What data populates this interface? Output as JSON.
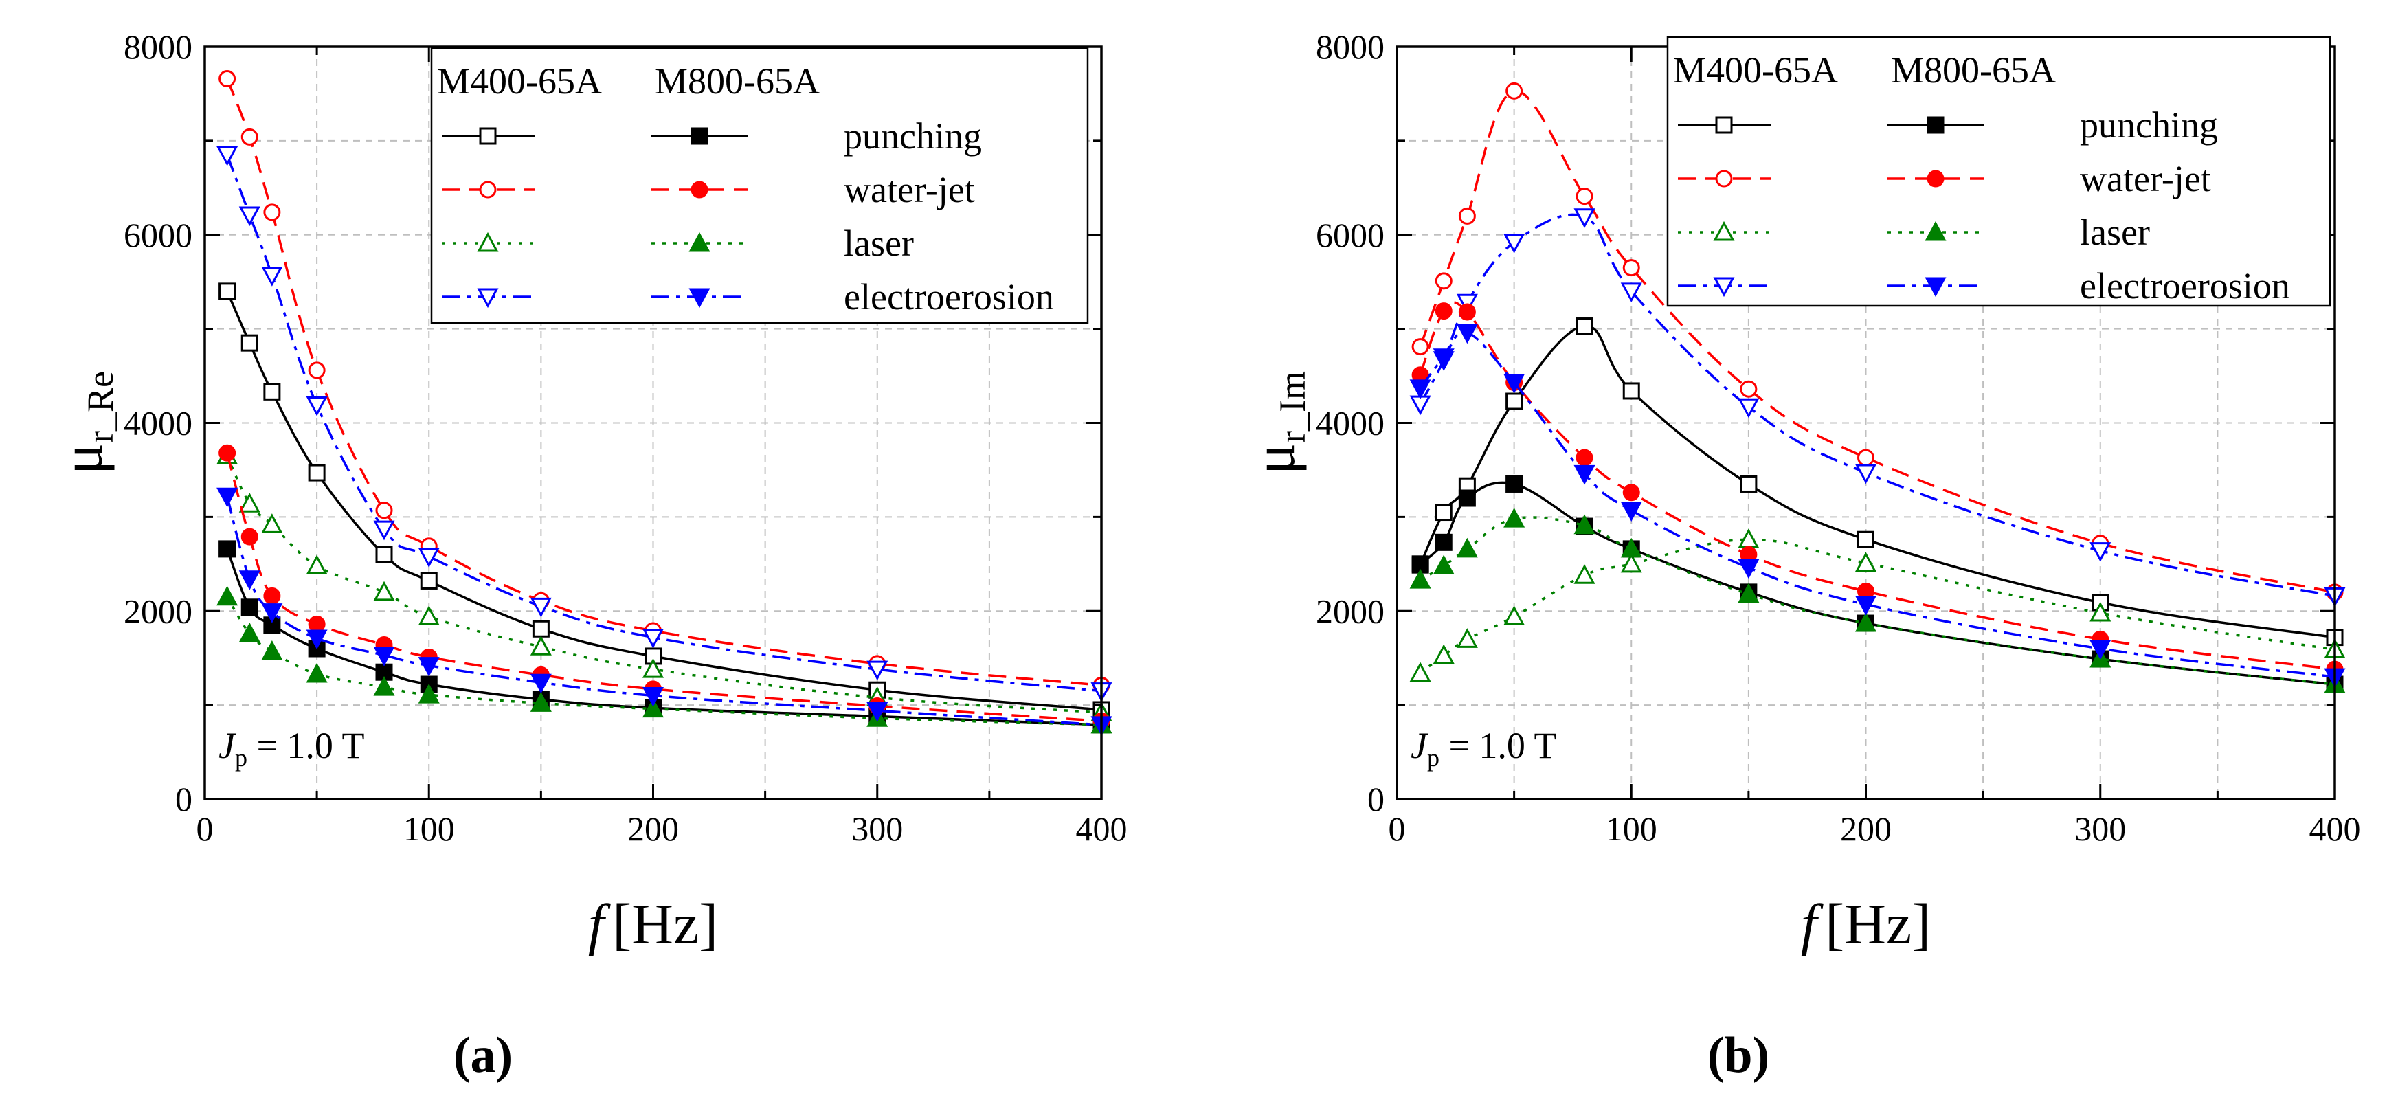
{
  "figure": {
    "panel_labels": [
      "(a)",
      "(b)"
    ]
  },
  "legend": {
    "header_m400": "M400-65A",
    "header_m800": "M800-65A",
    "entries": [
      "punching",
      "water-jet",
      "laser",
      "electroerosion"
    ]
  },
  "styles": {
    "punching": {
      "color": "#000000",
      "dash": "solid",
      "marker": "square"
    },
    "water-jet": {
      "color": "#ff0000",
      "dash": "dashed",
      "marker": "circle"
    },
    "laser": {
      "color": "#008000",
      "dash": "dotted",
      "marker": "triangle-up"
    },
    "electroerosion": {
      "color": "#0000ff",
      "dash": "dashdot",
      "marker": "triangle-down"
    }
  },
  "chart_data": [
    {
      "type": "line",
      "title": "(a)",
      "ylabel": "μr_Re",
      "ylabel_main": "μ",
      "ylabel_sub": "r_Re",
      "xlabel": "f [Hz]",
      "xlabel_var": "f",
      "xlabel_unit": "[Hz]",
      "annotation": {
        "var": "J",
        "sub": "p",
        "text": " = 1.0 T"
      },
      "xlim": [
        0,
        400
      ],
      "ylim": [
        0,
        8000
      ],
      "xticks": [
        0,
        100,
        200,
        300,
        400
      ],
      "yticks": [
        0,
        2000,
        4000,
        6000,
        8000
      ],
      "grid": true,
      "legend_position": "top-right",
      "x": [
        10,
        20,
        30,
        50,
        80,
        100,
        150,
        200,
        300,
        400
      ],
      "series": [
        {
          "name": "M400-65A punching",
          "material": "M400-65A",
          "process": "punching",
          "filled": false,
          "values": [
            5400,
            4850,
            4330,
            3470,
            2600,
            2320,
            1810,
            1520,
            1160,
            950
          ]
        },
        {
          "name": "M400-65A water-jet",
          "material": "M400-65A",
          "process": "water-jet",
          "filled": false,
          "values": [
            7660,
            7040,
            6240,
            4560,
            3070,
            2690,
            2110,
            1790,
            1440,
            1210
          ]
        },
        {
          "name": "M400-65A laser",
          "material": "M400-65A",
          "process": "laser",
          "filled": false,
          "values": [
            3650,
            3140,
            2920,
            2480,
            2200,
            1940,
            1620,
            1380,
            1080,
            920
          ]
        },
        {
          "name": "M400-65A electroerosion",
          "material": "M400-65A",
          "process": "electroerosion",
          "filled": false,
          "values": [
            6850,
            6210,
            5570,
            4190,
            2870,
            2580,
            2050,
            1720,
            1380,
            1150
          ]
        },
        {
          "name": "M800-65A punching",
          "material": "M800-65A",
          "process": "punching",
          "filled": true,
          "values": [
            2660,
            2040,
            1850,
            1600,
            1350,
            1220,
            1060,
            970,
            880,
            790
          ]
        },
        {
          "name": "M800-65A water-jet",
          "material": "M800-65A",
          "process": "water-jet",
          "filled": true,
          "values": [
            3680,
            2790,
            2160,
            1860,
            1640,
            1510,
            1320,
            1170,
            990,
            830
          ]
        },
        {
          "name": "M800-65A laser",
          "material": "M800-65A",
          "process": "laser",
          "filled": true,
          "values": [
            2150,
            1760,
            1570,
            1330,
            1190,
            1110,
            1020,
            960,
            860,
            790
          ]
        },
        {
          "name": "M800-65A electroerosion",
          "material": "M800-65A",
          "process": "electroerosion",
          "filled": true,
          "values": [
            3220,
            2340,
            1990,
            1710,
            1530,
            1420,
            1240,
            1100,
            940,
            790
          ]
        }
      ]
    },
    {
      "type": "line",
      "title": "(b)",
      "ylabel": "μr_Im",
      "ylabel_main": "μ",
      "ylabel_sub": "r_Im",
      "xlabel": "f [Hz]",
      "xlabel_var": "f",
      "xlabel_unit": "[Hz]",
      "annotation": {
        "var": "J",
        "sub": "p",
        "text": " = 1.0 T"
      },
      "xlim": [
        0,
        400
      ],
      "ylim": [
        0,
        8000
      ],
      "xticks": [
        0,
        100,
        200,
        300,
        400
      ],
      "yticks": [
        0,
        2000,
        4000,
        6000,
        8000
      ],
      "grid": true,
      "legend_position": "top-right",
      "x": [
        10,
        20,
        30,
        50,
        80,
        100,
        150,
        200,
        300,
        400
      ],
      "series": [
        {
          "name": "M400-65A punching",
          "material": "M400-65A",
          "process": "punching",
          "filled": false,
          "values": [
            2490,
            3050,
            3330,
            4230,
            5030,
            4340,
            3350,
            2760,
            2090,
            1720
          ]
        },
        {
          "name": "M400-65A water-jet",
          "material": "M400-65A",
          "process": "water-jet",
          "filled": false,
          "values": [
            4810,
            5510,
            6200,
            7530,
            6410,
            5650,
            4360,
            3630,
            2720,
            2200
          ]
        },
        {
          "name": "M400-65A laser",
          "material": "M400-65A",
          "process": "laser",
          "filled": false,
          "values": [
            1340,
            1530,
            1700,
            1940,
            2380,
            2500,
            2760,
            2510,
            1980,
            1590
          ]
        },
        {
          "name": "M400-65A electroerosion",
          "material": "M400-65A",
          "process": "electroerosion",
          "filled": false,
          "values": [
            4200,
            4670,
            5280,
            5920,
            6190,
            5400,
            4170,
            3470,
            2640,
            2160
          ]
        },
        {
          "name": "M800-65A punching",
          "material": "M800-65A",
          "process": "punching",
          "filled": true,
          "values": [
            2500,
            2730,
            3200,
            3350,
            2900,
            2660,
            2200,
            1870,
            1490,
            1220
          ]
        },
        {
          "name": "M800-65A water-jet",
          "material": "M800-65A",
          "process": "water-jet",
          "filled": true,
          "values": [
            4510,
            5190,
            5180,
            4430,
            3630,
            3260,
            2600,
            2210,
            1700,
            1380
          ]
        },
        {
          "name": "M800-65A laser",
          "material": "M800-65A",
          "process": "laser",
          "filled": true,
          "values": [
            2330,
            2480,
            2660,
            2980,
            2910,
            2660,
            2180,
            1870,
            1490,
            1220
          ]
        },
        {
          "name": "M800-65A electroerosion",
          "material": "M800-65A",
          "process": "electroerosion",
          "filled": true,
          "values": [
            4370,
            4700,
            4960,
            4430,
            3460,
            3070,
            2460,
            2070,
            1600,
            1300
          ]
        }
      ]
    }
  ]
}
